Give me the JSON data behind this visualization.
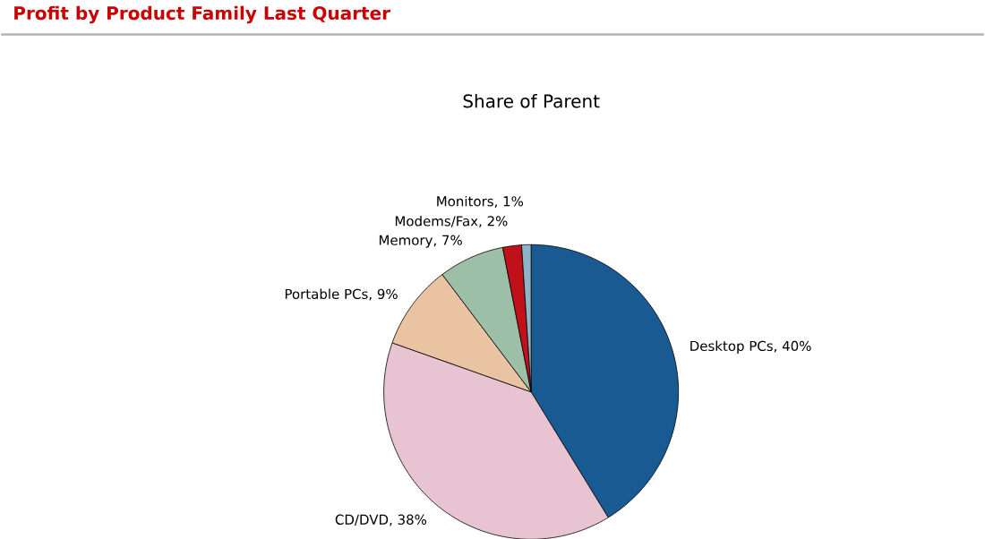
{
  "chart_data": {
    "type": "pie",
    "title": "Profit by Product Family Last Quarter",
    "subtitle": "Share of Parent",
    "categories": [
      "Desktop PCs, 40%",
      "CD/DVD, 38%",
      "Portable PCs, 9%",
      "Memory, 7%",
      "Modems/Fax, 2%",
      "Monitors, 1%"
    ],
    "values": [
      40,
      38,
      9,
      7,
      2,
      1
    ],
    "colors": [
      "#1a5a92",
      "#e8c4d2",
      "#eac4a2",
      "#9dbfa8",
      "#c0101a",
      "#8fb4c8"
    ]
  }
}
